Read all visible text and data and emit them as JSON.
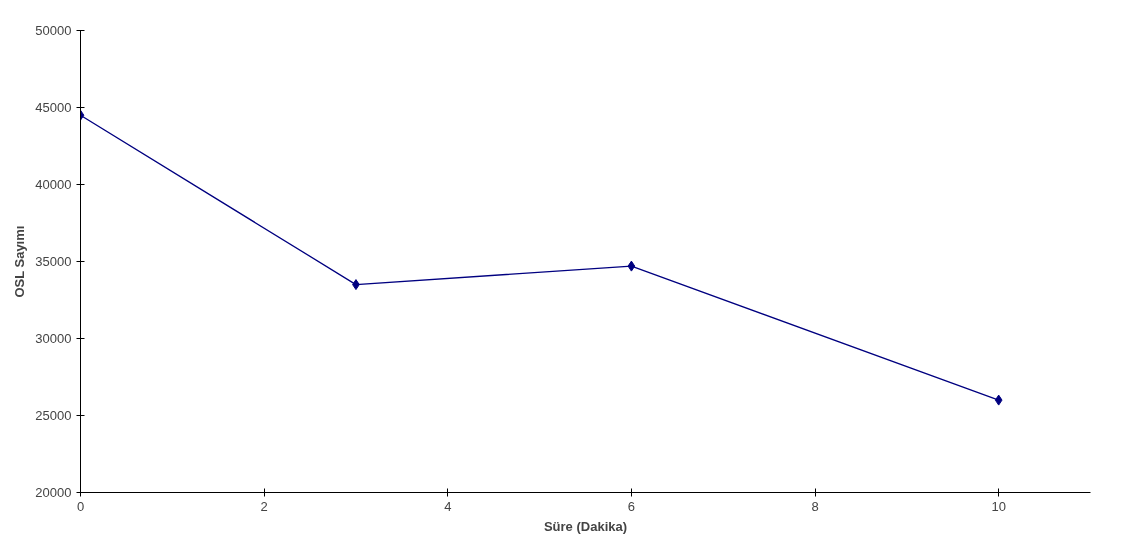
{
  "chart_data": {
    "type": "line",
    "xlabel": "Süre (Dakika)",
    "ylabel": "OSL Sayımı",
    "x": [
      0,
      3,
      6,
      10
    ],
    "series": [
      {
        "color": "#000080",
        "values": [
          44500,
          33500,
          34700,
          26000
        ]
      }
    ],
    "xlim": [
      0,
      11
    ],
    "xticks": [
      0,
      2,
      4,
      6,
      8,
      10
    ],
    "ylim": [
      20000,
      50000
    ],
    "yticks": [
      20000,
      25000,
      30000,
      35000,
      40000,
      45000,
      50000
    ],
    "grid": false,
    "marker": "diamond",
    "line_style": "solid"
  }
}
